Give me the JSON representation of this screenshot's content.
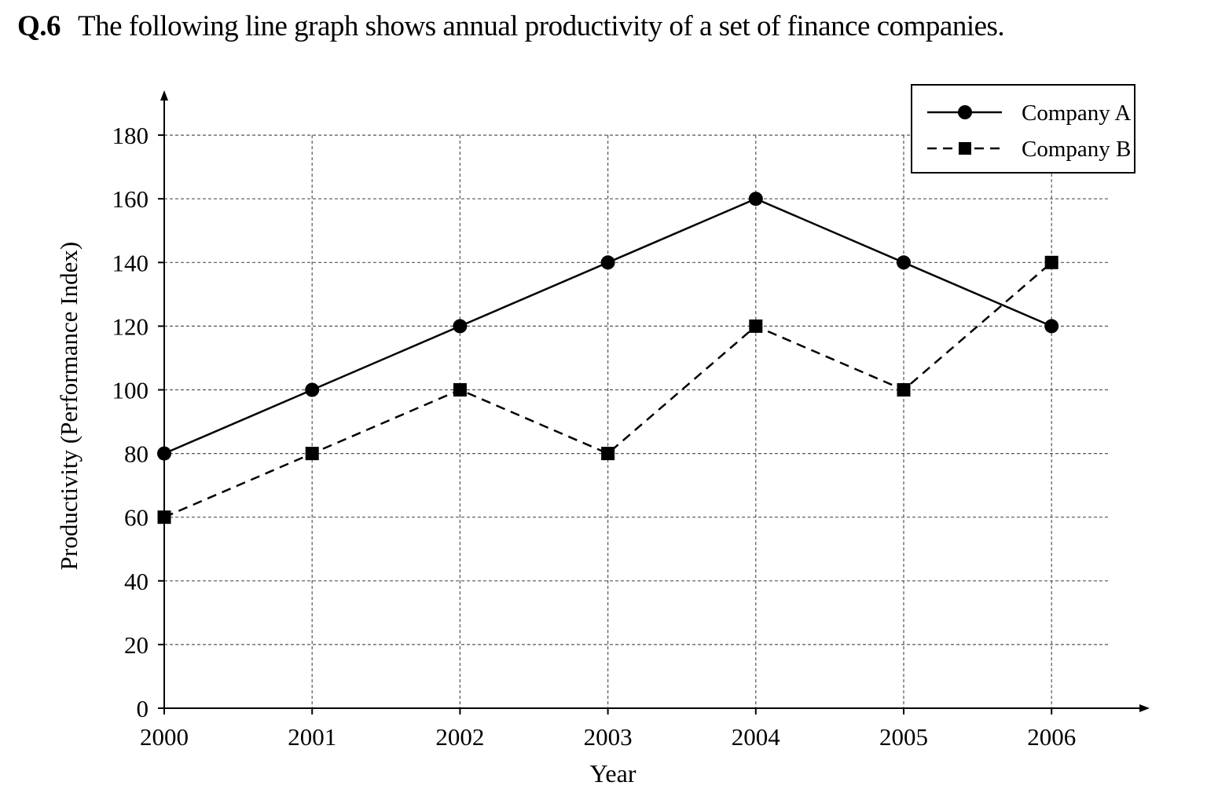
{
  "question": {
    "number": "Q.6",
    "text": "The following line graph shows annual productivity of a set of finance companies."
  },
  "chart_data": {
    "type": "line",
    "title": "",
    "xlabel": "Year",
    "ylabel": "Productivity (Performance Index)",
    "x": [
      "2000",
      "2001",
      "2002",
      "2003",
      "2004",
      "2005",
      "2006"
    ],
    "yticks": [
      "0",
      "20",
      "40",
      "60",
      "80",
      "100",
      "120",
      "140",
      "160",
      "180"
    ],
    "ylim": [
      0,
      180
    ],
    "grid": true,
    "legend_position": "top-right",
    "series": [
      {
        "name": "Company A",
        "line_style": "solid",
        "marker": "circle",
        "color": "#000000",
        "values": [
          80,
          100,
          120,
          140,
          160,
          140,
          120
        ]
      },
      {
        "name": "Company B",
        "line_style": "dashed",
        "marker": "square",
        "color": "#000000",
        "values": [
          60,
          80,
          100,
          80,
          120,
          100,
          140
        ]
      }
    ]
  }
}
